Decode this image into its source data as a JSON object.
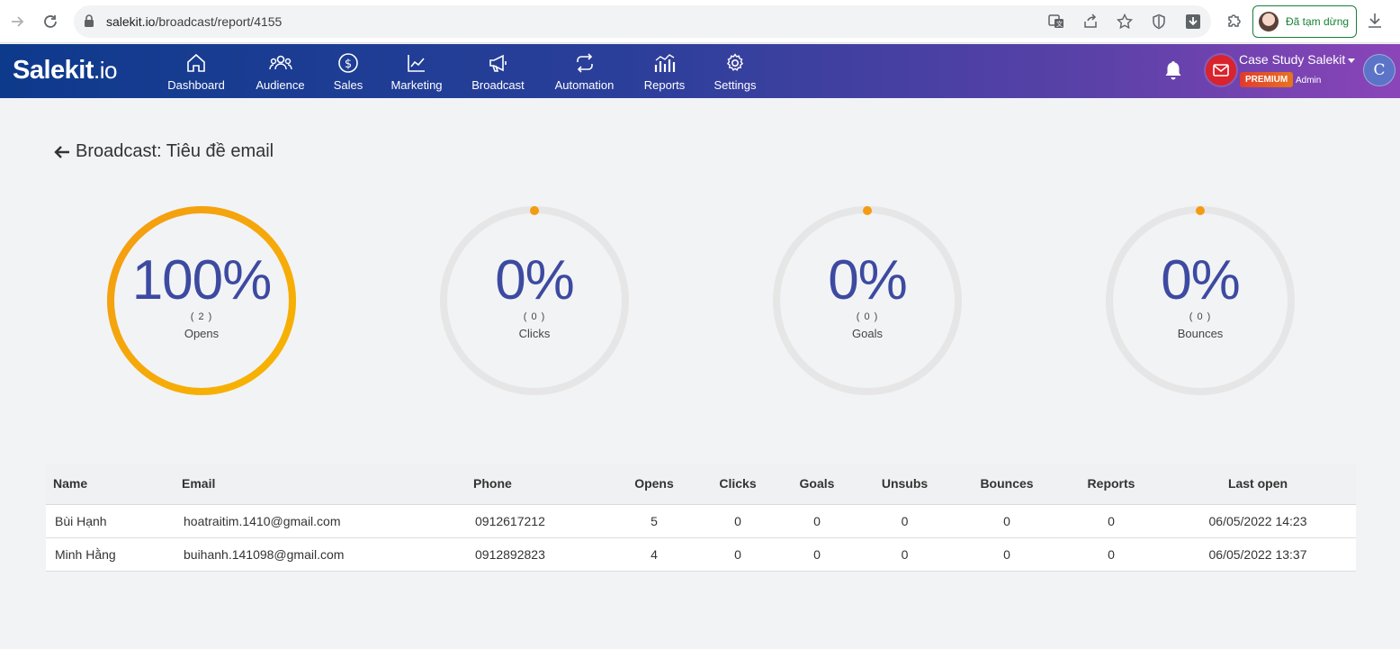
{
  "browser": {
    "url_host": "salekit.io",
    "url_path": "/broadcast/report/4155",
    "profile_status": "Đã tạm dừng"
  },
  "app": {
    "logo_main": "Salekit",
    "logo_suffix": ".io",
    "nav": [
      {
        "label": "Dashboard",
        "icon": "home-icon"
      },
      {
        "label": "Audience",
        "icon": "users-icon"
      },
      {
        "label": "Sales",
        "icon": "dollar-icon"
      },
      {
        "label": "Marketing",
        "icon": "chart-line-icon"
      },
      {
        "label": "Broadcast",
        "icon": "megaphone-icon"
      },
      {
        "label": "Automation",
        "icon": "repeat-icon"
      },
      {
        "label": "Reports",
        "icon": "bar-chart-icon"
      },
      {
        "label": "Settings",
        "icon": "gear-icon"
      }
    ],
    "account": {
      "name": "Case Study Salekit",
      "plan": "PREMIUM",
      "role": "Admin",
      "avatar_letter": "C"
    },
    "colors": {
      "accent_orange": "#f39c12",
      "number_blue": "#3d4aa1",
      "track_gray": "#e6e6e6"
    }
  },
  "page": {
    "title": "Broadcast: Tiêu đề email"
  },
  "stats": [
    {
      "percent": "100%",
      "count": "( 2 )",
      "label": "Opens",
      "fraction": 1.0
    },
    {
      "percent": "0%",
      "count": "( 0 )",
      "label": "Clicks",
      "fraction": 0.0
    },
    {
      "percent": "0%",
      "count": "( 0 )",
      "label": "Goals",
      "fraction": 0.0
    },
    {
      "percent": "0%",
      "count": "( 0 )",
      "label": "Bounces",
      "fraction": 0.0
    }
  ],
  "table": {
    "headers": [
      "Name",
      "Email",
      "Phone",
      "Opens",
      "Clicks",
      "Goals",
      "Unsubs",
      "Bounces",
      "Reports",
      "Last open"
    ],
    "rows": [
      [
        "Bùi Hạnh",
        "hoatraitim.1410@gmail.com",
        "0912617212",
        "5",
        "0",
        "0",
        "0",
        "0",
        "0",
        "06/05/2022 14:23"
      ],
      [
        "Minh Hằng",
        "buihanh.141098@gmail.com",
        "0912892823",
        "4",
        "0",
        "0",
        "0",
        "0",
        "0",
        "06/05/2022 13:37"
      ]
    ]
  }
}
